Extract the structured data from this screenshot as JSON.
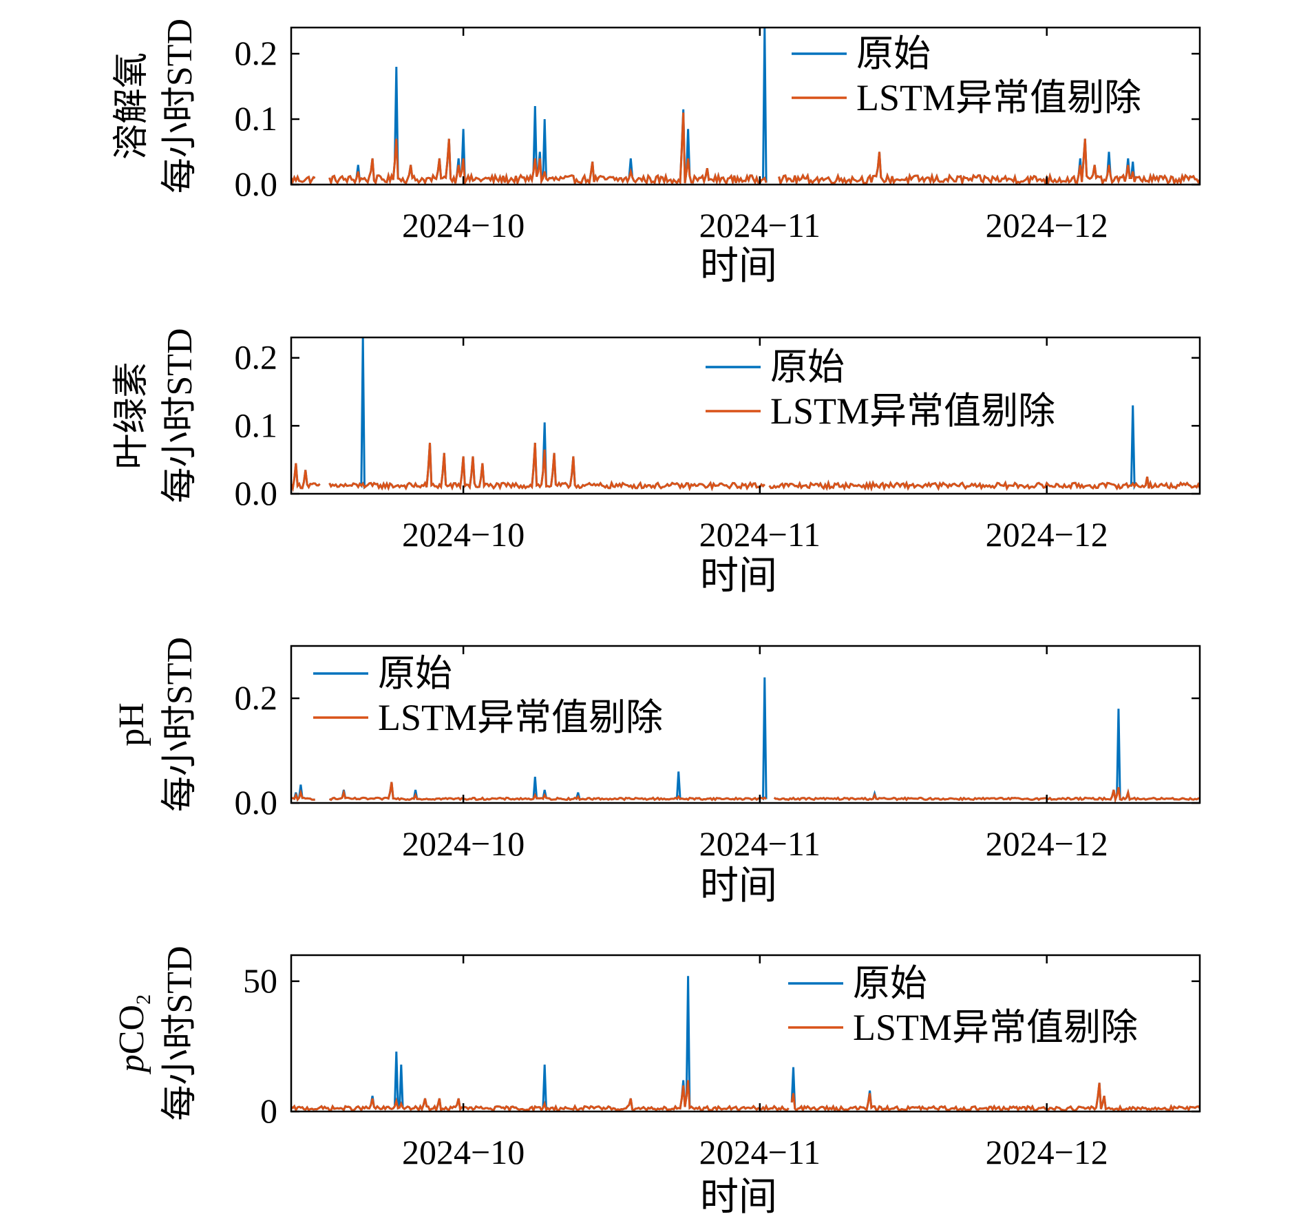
{
  "colors": {
    "original": "#0072BD",
    "cleaned": "#D95319",
    "axis": "#000000"
  },
  "legend_labels": {
    "original": "原始",
    "cleaned": "LSTM异常值剔除"
  },
  "x_axis": {
    "label": "时间",
    "start": "2024-09-13",
    "end": "2024-12-17",
    "ticks": [
      "2024-10-01",
      "2024-11-01",
      "2024-12-01"
    ],
    "tick_labels": [
      "2024−10",
      "2024−11",
      "2024−12"
    ]
  },
  "chart_data": [
    {
      "type": "line",
      "ylabel_line1": "溶解氧",
      "ylabel_line2": "每小时STD",
      "ylim": [
        0,
        0.24
      ],
      "yticks": [
        0,
        0.1,
        0.2
      ],
      "ytick_labels": [
        "0.0",
        "0.1",
        "0.2"
      ],
      "legend_position": "top-right",
      "baseline": 0.008,
      "noise": 0.006,
      "gaps": [
        [
          "2024-09-15T12:00",
          "2024-09-17T00:00"
        ],
        [
          "2024-11-01T18:00",
          "2024-11-03T00:00"
        ]
      ],
      "spikes": [
        {
          "x": "2024-09-20T00:00",
          "orig": 0.03,
          "clean": 0.02
        },
        {
          "x": "2024-09-21T12:00",
          "orig": 0.04,
          "clean": 0.04
        },
        {
          "x": "2024-09-24T00:00",
          "orig": 0.18,
          "clean": 0.07
        },
        {
          "x": "2024-09-25T12:00",
          "orig": 0.03,
          "clean": 0.03
        },
        {
          "x": "2024-09-28T12:00",
          "orig": 0.04,
          "clean": 0.04
        },
        {
          "x": "2024-09-29T12:00",
          "orig": 0.07,
          "clean": 0.07
        },
        {
          "x": "2024-09-30T12:00",
          "orig": 0.04,
          "clean": 0.03
        },
        {
          "x": "2024-10-01T00:00",
          "orig": 0.085,
          "clean": 0.04
        },
        {
          "x": "2024-10-08T12:00",
          "orig": 0.12,
          "clean": 0.04
        },
        {
          "x": "2024-10-09T00:00",
          "orig": 0.05,
          "clean": 0.04
        },
        {
          "x": "2024-10-09T12:00",
          "orig": 0.1,
          "clean": 0.02
        },
        {
          "x": "2024-10-14T12:00",
          "orig": 0.035,
          "clean": 0.035
        },
        {
          "x": "2024-10-18T12:00",
          "orig": 0.04,
          "clean": 0.02
        },
        {
          "x": "2024-10-24T00:00",
          "orig": 0.115,
          "clean": 0.11
        },
        {
          "x": "2024-10-24T12:00",
          "orig": 0.085,
          "clean": 0.04
        },
        {
          "x": "2024-10-26T12:00",
          "orig": 0.025,
          "clean": 0.025
        },
        {
          "x": "2024-11-01T12:00",
          "orig": 0.24,
          "clean": 0.01
        },
        {
          "x": "2024-11-13T12:00",
          "orig": 0.05,
          "clean": 0.05
        },
        {
          "x": "2024-12-04T12:00",
          "orig": 0.04,
          "clean": 0.03
        },
        {
          "x": "2024-12-05T00:00",
          "orig": 0.07,
          "clean": 0.07
        },
        {
          "x": "2024-12-06T00:00",
          "orig": 0.03,
          "clean": 0.03
        },
        {
          "x": "2024-12-07T12:00",
          "orig": 0.05,
          "clean": 0.03
        },
        {
          "x": "2024-12-09T12:00",
          "orig": 0.04,
          "clean": 0.03
        },
        {
          "x": "2024-12-10T00:00",
          "orig": 0.035,
          "clean": 0.02
        }
      ]
    },
    {
      "type": "line",
      "ylabel_line1": "叶绿素",
      "ylabel_line2": "每小时STD",
      "ylim": [
        0,
        0.23
      ],
      "yticks": [
        0,
        0.1,
        0.2
      ],
      "ytick_labels": [
        "0.0",
        "0.1",
        "0.2"
      ],
      "legend_position": "top-right",
      "baseline": 0.012,
      "noise": 0.004,
      "gaps": [
        [
          "2024-09-16T00:00",
          "2024-09-17T00:00"
        ],
        [
          "2024-11-01T12:00",
          "2024-11-02T00:00"
        ]
      ],
      "spikes": [
        {
          "x": "2024-09-13T12:00",
          "orig": 0.045,
          "clean": 0.045
        },
        {
          "x": "2024-09-14T12:00",
          "orig": 0.035,
          "clean": 0.035
        },
        {
          "x": "2024-09-20T12:00",
          "orig": 0.23,
          "clean": 0.015
        },
        {
          "x": "2024-09-27T12:00",
          "orig": 0.075,
          "clean": 0.075
        },
        {
          "x": "2024-09-29T00:00",
          "orig": 0.06,
          "clean": 0.06
        },
        {
          "x": "2024-10-01T00:00",
          "orig": 0.055,
          "clean": 0.055
        },
        {
          "x": "2024-10-02T00:00",
          "orig": 0.055,
          "clean": 0.055
        },
        {
          "x": "2024-10-03T00:00",
          "orig": 0.045,
          "clean": 0.045
        },
        {
          "x": "2024-10-08T12:00",
          "orig": 0.075,
          "clean": 0.075
        },
        {
          "x": "2024-10-09T12:00",
          "orig": 0.105,
          "clean": 0.065
        },
        {
          "x": "2024-10-10T12:00",
          "orig": 0.06,
          "clean": 0.06
        },
        {
          "x": "2024-10-12T12:00",
          "orig": 0.055,
          "clean": 0.055
        },
        {
          "x": "2024-12-10T00:00",
          "orig": 0.13,
          "clean": 0.015
        },
        {
          "x": "2024-12-11T12:00",
          "orig": 0.025,
          "clean": 0.025
        }
      ]
    },
    {
      "type": "line",
      "ylabel_line1": "pH",
      "ylabel_line2": "每小时STD",
      "ylim": [
        0,
        0.3
      ],
      "yticks": [
        0,
        0.2
      ],
      "ytick_labels": [
        "0.0",
        "0.2"
      ],
      "legend_position": "top-left",
      "baseline": 0.008,
      "noise": 0.002,
      "gaps": [
        [
          "2024-09-15T12:00",
          "2024-09-17T00:00"
        ],
        [
          "2024-11-01T18:00",
          "2024-11-02T12:00"
        ]
      ],
      "spikes": [
        {
          "x": "2024-09-13T12:00",
          "orig": 0.02,
          "clean": 0.015
        },
        {
          "x": "2024-09-14T00:00",
          "orig": 0.035,
          "clean": 0.02
        },
        {
          "x": "2024-09-18T12:00",
          "orig": 0.025,
          "clean": 0.02
        },
        {
          "x": "2024-09-23T12:00",
          "orig": 0.04,
          "clean": 0.04
        },
        {
          "x": "2024-09-26T00:00",
          "orig": 0.025,
          "clean": 0.015
        },
        {
          "x": "2024-10-08T12:00",
          "orig": 0.05,
          "clean": 0.015
        },
        {
          "x": "2024-10-09T12:00",
          "orig": 0.025,
          "clean": 0.015
        },
        {
          "x": "2024-10-13T00:00",
          "orig": 0.02,
          "clean": 0.012
        },
        {
          "x": "2024-10-23T12:00",
          "orig": 0.06,
          "clean": 0.012
        },
        {
          "x": "2024-11-01T12:00",
          "orig": 0.24,
          "clean": 0.01
        },
        {
          "x": "2024-11-13T00:00",
          "orig": 0.018,
          "clean": 0.015
        },
        {
          "x": "2024-12-08T00:00",
          "orig": 0.025,
          "clean": 0.025
        },
        {
          "x": "2024-12-08T12:00",
          "orig": 0.18,
          "clean": 0.03
        },
        {
          "x": "2024-12-09T12:00",
          "orig": 0.02,
          "clean": 0.02
        }
      ]
    },
    {
      "type": "line",
      "ylabel_line1": "pCO",
      "ylabel_line1_sub": "2",
      "ylabel_line2": "每小时STD",
      "ylim": [
        0,
        60
      ],
      "yticks": [
        0,
        50
      ],
      "ytick_labels": [
        "0",
        "50"
      ],
      "legend_position": "top-right",
      "baseline": 1.2,
      "noise": 0.8,
      "gaps": [
        [
          "2024-11-04T00:00",
          "2024-11-04T12:00"
        ]
      ],
      "spikes": [
        {
          "x": "2024-09-21T12:00",
          "orig": 6,
          "clean": 5
        },
        {
          "x": "2024-09-24T00:00",
          "orig": 23,
          "clean": 4
        },
        {
          "x": "2024-09-24T12:00",
          "orig": 18,
          "clean": 3
        },
        {
          "x": "2024-09-27T00:00",
          "orig": 5,
          "clean": 5
        },
        {
          "x": "2024-09-28T12:00",
          "orig": 5,
          "clean": 5
        },
        {
          "x": "2024-09-30T12:00",
          "orig": 5,
          "clean": 5
        },
        {
          "x": "2024-10-09T12:00",
          "orig": 18,
          "clean": 3
        },
        {
          "x": "2024-10-18T12:00",
          "orig": 5,
          "clean": 5
        },
        {
          "x": "2024-10-24T00:00",
          "orig": 12,
          "clean": 10
        },
        {
          "x": "2024-10-24T12:00",
          "orig": 52,
          "clean": 12
        },
        {
          "x": "2024-11-04T12:00",
          "orig": 17,
          "clean": 7
        },
        {
          "x": "2024-11-12T12:00",
          "orig": 8,
          "clean": 7
        },
        {
          "x": "2024-12-06T12:00",
          "orig": 11,
          "clean": 11
        },
        {
          "x": "2024-12-07T00:00",
          "orig": 6,
          "clean": 6
        }
      ]
    }
  ]
}
